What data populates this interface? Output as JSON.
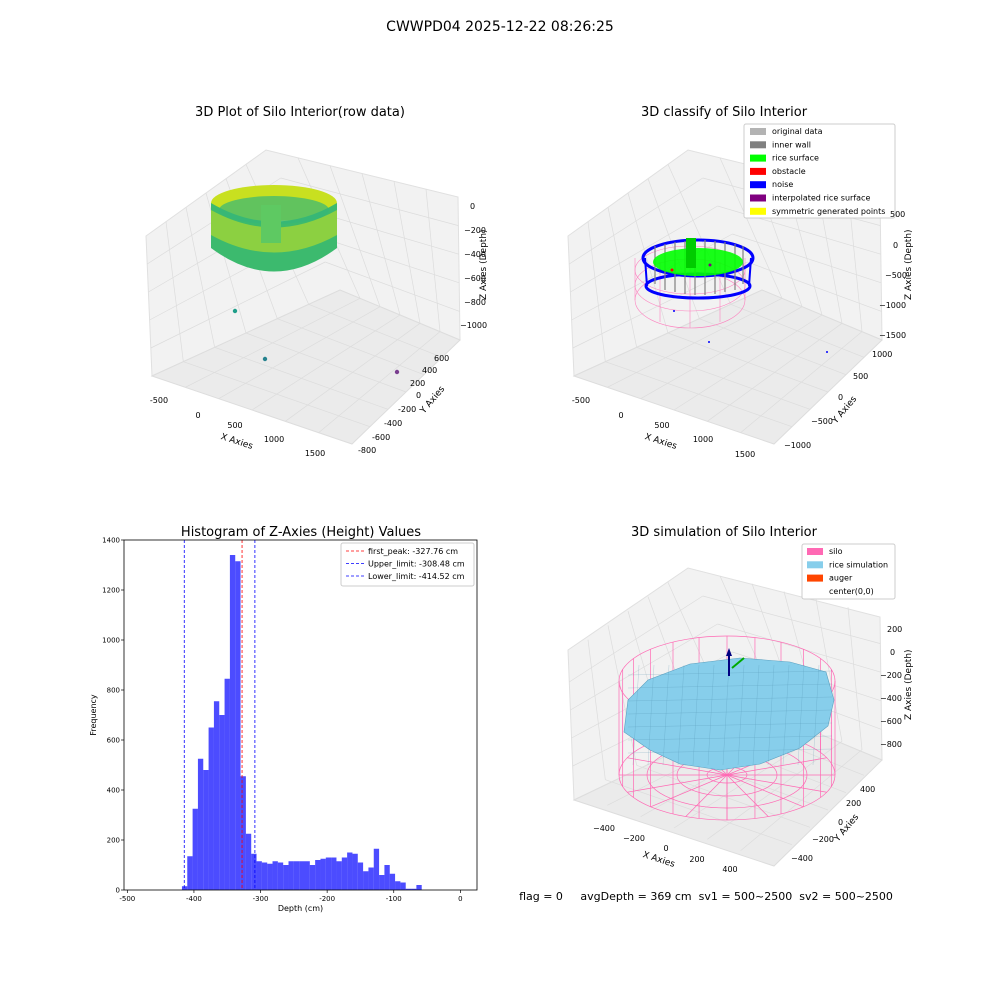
{
  "figure": {
    "suptitle": "CWWPD04 2025-12-22 08:26:25",
    "status_line": "flag = 0     avgDepth = 369 cm  sv1 = 500~2500  sv2 = 500~2500"
  },
  "panels": {
    "raw": {
      "title": "3D Plot of Silo Interior(row data)",
      "xlabel": "X Axies",
      "ylabel": "Y Axies",
      "zlabel": "Z Axies (Depth)",
      "xticks": [
        "-500",
        "0",
        "500",
        "1000",
        "1500"
      ],
      "yticks": [
        "-800",
        "-600",
        "-400",
        "-200",
        "0",
        "200",
        "400",
        "600"
      ],
      "zticks": [
        "0",
        "−200",
        "−400",
        "−600",
        "−800",
        "−1000"
      ]
    },
    "classify": {
      "title": "3D classify of Silo Interior",
      "xlabel": "X Axies",
      "ylabel": "Y Axies",
      "zlabel": "Z Axies (Depth)",
      "xticks": [
        "-500",
        "0",
        "500",
        "1000",
        "1500"
      ],
      "yticks": [
        "−1000",
        "−500",
        "0",
        "500",
        "1000"
      ],
      "zticks": [
        "500",
        "0",
        "−500",
        "−1000",
        "−1500"
      ],
      "legend": [
        {
          "label": "original data",
          "color": "#b3b3b3"
        },
        {
          "label": "inner wall",
          "color": "#808080"
        },
        {
          "label": "rice surface",
          "color": "#00ff00"
        },
        {
          "label": "obstacle",
          "color": "#ff0000"
        },
        {
          "label": "noise",
          "color": "#0000ff"
        },
        {
          "label": "interpolated rice surface",
          "color": "#800080"
        },
        {
          "label": "symmetric generated points",
          "color": "#ffff00"
        }
      ]
    },
    "simulation": {
      "title": "3D simulation of Silo Interior",
      "xlabel": "X Axies",
      "ylabel": "Y Axies",
      "zlabel": "Z Axies (Depth)",
      "xticks": [
        "−400",
        "−200",
        "0",
        "200",
        "400"
      ],
      "yticks": [
        "−400",
        "−200",
        "0",
        "200",
        "400"
      ],
      "zticks": [
        "200",
        "0",
        "−200",
        "−400",
        "−600",
        "−800"
      ],
      "legend": [
        {
          "label": "silo",
          "color": "#ff69b4"
        },
        {
          "label": "rice simulation",
          "color": "#87ceeb"
        },
        {
          "label": "auger",
          "color": "#ff4500"
        },
        {
          "label": "center(0,0)",
          "color": ""
        }
      ]
    }
  },
  "chart_data": {
    "type": "bar",
    "title": "Histogram of Z-Axies (Height) Values",
    "xlabel": "Depth (cm)",
    "ylabel": "Frequency",
    "xlim": [
      -505,
      25
    ],
    "ylim": [
      0,
      1400
    ],
    "xticks": [
      -500,
      -400,
      -300,
      -200,
      -100,
      0
    ],
    "yticks": [
      0,
      200,
      400,
      600,
      800,
      1000,
      1200,
      1400
    ],
    "bar_color": "#0000ff",
    "bin_width": 8,
    "series": [
      {
        "bins": [
          [
            -418,
            15
          ],
          [
            -410,
            135
          ],
          [
            -402,
            325
          ],
          [
            -394,
            525
          ],
          [
            -386,
            480
          ],
          [
            -378,
            650
          ],
          [
            -370,
            755
          ],
          [
            -362,
            700
          ],
          [
            -354,
            845
          ],
          [
            -346,
            1340
          ],
          [
            -338,
            1315
          ],
          [
            -330,
            455
          ],
          [
            -322,
            225
          ],
          [
            -314,
            145
          ],
          [
            -306,
            115
          ],
          [
            -298,
            110
          ],
          [
            -290,
            105
          ],
          [
            -282,
            115
          ],
          [
            -274,
            110
          ],
          [
            -266,
            100
          ],
          [
            -258,
            115
          ],
          [
            -250,
            115
          ],
          [
            -242,
            115
          ],
          [
            -234,
            115
          ],
          [
            -226,
            100
          ],
          [
            -218,
            120
          ],
          [
            -210,
            125
          ],
          [
            -202,
            130
          ],
          [
            -194,
            130
          ],
          [
            -186,
            115
          ],
          [
            -178,
            130
          ],
          [
            -170,
            150
          ],
          [
            -162,
            145
          ],
          [
            -154,
            110
          ],
          [
            -146,
            75
          ],
          [
            -138,
            90
          ],
          [
            -130,
            165
          ],
          [
            -122,
            60
          ],
          [
            -114,
            100
          ],
          [
            -106,
            65
          ],
          [
            -98,
            35
          ],
          [
            -90,
            30
          ],
          [
            -82,
            5
          ],
          [
            -74,
            5
          ],
          [
            -66,
            20
          ]
        ]
      }
    ],
    "vlines": [
      {
        "x": -327.76,
        "color": "#ff0000",
        "label": "first_peak: -327.76 cm"
      },
      {
        "x": -308.48,
        "color": "#0000ff",
        "label": "Upper_limit: -308.48 cm"
      },
      {
        "x": -414.52,
        "color": "#0000ff",
        "label": "Lower_limit: -414.52 cm"
      }
    ],
    "legend_position": "upper right"
  }
}
